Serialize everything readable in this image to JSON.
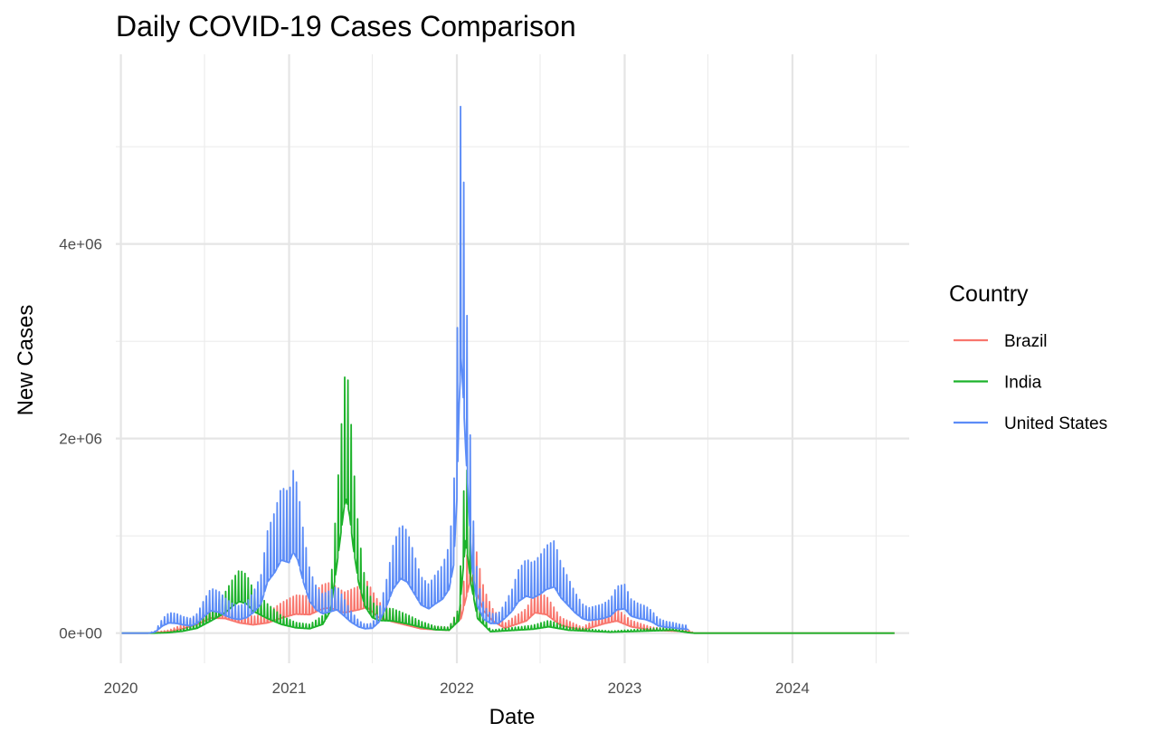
{
  "chart_data": {
    "type": "line",
    "title": "Daily COVID-19 Cases Comparison",
    "xlabel": "Date",
    "ylabel": "New Cases",
    "x_range": [
      "2019-12-21",
      "2024-09-11"
    ],
    "ylim": [
      -310000,
      5950000
    ],
    "x_ticks": [
      {
        "date": "2020-01-01",
        "label": "2020"
      },
      {
        "date": "2021-01-01",
        "label": "2021"
      },
      {
        "date": "2022-01-01",
        "label": "2022"
      },
      {
        "date": "2023-01-01",
        "label": "2023"
      },
      {
        "date": "2024-01-01",
        "label": "2024"
      }
    ],
    "x_minor_ticks": [
      "2020-07-01",
      "2021-07-01",
      "2022-07-01",
      "2023-07-01",
      "2024-07-01"
    ],
    "y_ticks": [
      {
        "value": 0,
        "label": "0e+00"
      },
      {
        "value": 2000000,
        "label": "2e+06"
      },
      {
        "value": 4000000,
        "label": "4e+06"
      }
    ],
    "y_minor_ticks": [
      1000000,
      3000000,
      5000000
    ],
    "grid": true,
    "legend": {
      "title": "Country",
      "position": "right"
    },
    "series": [
      {
        "name": "Brazil",
        "color": "#F8766D",
        "points": [
          [
            "2020-01-03",
            0
          ],
          [
            "2020-03-01",
            0
          ],
          [
            "2020-04-15",
            30000
          ],
          [
            "2020-05-15",
            90000
          ],
          [
            "2020-06-15",
            180000
          ],
          [
            "2020-07-15",
            310000
          ],
          [
            "2020-08-15",
            300000
          ],
          [
            "2020-09-15",
            210000
          ],
          [
            "2020-10-15",
            170000
          ],
          [
            "2020-11-15",
            210000
          ],
          [
            "2020-12-15",
            310000
          ],
          [
            "2021-01-15",
            390000
          ],
          [
            "2021-02-15",
            380000
          ],
          [
            "2021-03-15",
            500000
          ],
          [
            "2021-04-01",
            520000
          ],
          [
            "2021-05-01",
            420000
          ],
          [
            "2021-06-01",
            480000
          ],
          [
            "2021-06-20",
            530000
          ],
          [
            "2021-07-15",
            320000
          ],
          [
            "2021-08-15",
            230000
          ],
          [
            "2021-09-15",
            160000
          ],
          [
            "2021-10-15",
            90000
          ],
          [
            "2021-11-15",
            70000
          ],
          [
            "2021-12-15",
            60000
          ],
          [
            "2022-01-10",
            300000
          ],
          [
            "2022-02-01",
            1150000
          ],
          [
            "2022-02-15",
            780000
          ],
          [
            "2022-03-01",
            450000
          ],
          [
            "2022-03-20",
            250000
          ],
          [
            "2022-04-15",
            100000
          ],
          [
            "2022-06-01",
            250000
          ],
          [
            "2022-06-20",
            420000
          ],
          [
            "2022-07-15",
            380000
          ],
          [
            "2022-08-15",
            160000
          ],
          [
            "2022-10-01",
            60000
          ],
          [
            "2022-11-20",
            200000
          ],
          [
            "2022-12-15",
            250000
          ],
          [
            "2023-01-15",
            130000
          ],
          [
            "2023-03-01",
            60000
          ],
          [
            "2023-05-20",
            30000
          ],
          [
            "2023-06-01",
            0
          ],
          [
            "2024-08-10",
            0
          ]
        ]
      },
      {
        "name": "India",
        "color": "#1CB22A",
        "points": [
          [
            "2020-01-03",
            0
          ],
          [
            "2020-03-15",
            0
          ],
          [
            "2020-04-15",
            10000
          ],
          [
            "2020-05-15",
            40000
          ],
          [
            "2020-06-15",
            100000
          ],
          [
            "2020-07-15",
            250000
          ],
          [
            "2020-08-15",
            420000
          ],
          [
            "2020-09-01",
            560000
          ],
          [
            "2020-09-15",
            650000
          ],
          [
            "2020-10-01",
            600000
          ],
          [
            "2020-10-15",
            450000
          ],
          [
            "2020-11-15",
            300000
          ],
          [
            "2020-12-15",
            180000
          ],
          [
            "2021-01-15",
            110000
          ],
          [
            "2021-02-15",
            90000
          ],
          [
            "2021-03-15",
            180000
          ],
          [
            "2021-04-01",
            450000
          ],
          [
            "2021-04-15",
            1400000
          ],
          [
            "2021-04-25",
            2150000
          ],
          [
            "2021-05-01",
            2600000
          ],
          [
            "2021-05-06",
            2750000
          ],
          [
            "2021-05-13",
            2400000
          ],
          [
            "2021-05-20",
            1800000
          ],
          [
            "2021-06-01",
            1050000
          ],
          [
            "2021-06-15",
            550000
          ],
          [
            "2021-07-01",
            320000
          ],
          [
            "2021-07-15",
            260000
          ],
          [
            "2021-08-15",
            250000
          ],
          [
            "2021-09-15",
            190000
          ],
          [
            "2021-10-15",
            120000
          ],
          [
            "2021-11-15",
            70000
          ],
          [
            "2021-12-15",
            60000
          ],
          [
            "2022-01-05",
            250000
          ],
          [
            "2022-01-20",
            1900000
          ],
          [
            "2022-02-01",
            1000000
          ],
          [
            "2022-02-15",
            300000
          ],
          [
            "2022-03-15",
            30000
          ],
          [
            "2022-06-15",
            80000
          ],
          [
            "2022-07-20",
            130000
          ],
          [
            "2022-09-01",
            60000
          ],
          [
            "2022-12-01",
            20000
          ],
          [
            "2023-04-15",
            60000
          ],
          [
            "2023-05-20",
            10000
          ],
          [
            "2023-06-01",
            0
          ],
          [
            "2024-08-10",
            0
          ]
        ]
      },
      {
        "name": "United States",
        "color": "#5C8CF7",
        "points": [
          [
            "2020-01-03",
            0
          ],
          [
            "2020-03-01",
            0
          ],
          [
            "2020-03-15",
            20000
          ],
          [
            "2020-04-01",
            150000
          ],
          [
            "2020-04-15",
            210000
          ],
          [
            "2020-05-01",
            200000
          ],
          [
            "2020-05-15",
            170000
          ],
          [
            "2020-06-01",
            150000
          ],
          [
            "2020-06-15",
            200000
          ],
          [
            "2020-07-01",
            350000
          ],
          [
            "2020-07-15",
            460000
          ],
          [
            "2020-08-01",
            430000
          ],
          [
            "2020-08-15",
            360000
          ],
          [
            "2020-09-01",
            300000
          ],
          [
            "2020-09-15",
            280000
          ],
          [
            "2020-10-01",
            320000
          ],
          [
            "2020-10-15",
            420000
          ],
          [
            "2020-11-01",
            600000
          ],
          [
            "2020-11-15",
            1050000
          ],
          [
            "2020-12-01",
            1250000
          ],
          [
            "2020-12-15",
            1500000
          ],
          [
            "2021-01-01",
            1450000
          ],
          [
            "2021-01-10",
            1670000
          ],
          [
            "2021-01-20",
            1500000
          ],
          [
            "2021-02-01",
            1050000
          ],
          [
            "2021-02-15",
            650000
          ],
          [
            "2021-03-01",
            480000
          ],
          [
            "2021-03-15",
            400000
          ],
          [
            "2021-04-01",
            440000
          ],
          [
            "2021-04-15",
            480000
          ],
          [
            "2021-05-01",
            350000
          ],
          [
            "2021-05-15",
            230000
          ],
          [
            "2021-06-01",
            130000
          ],
          [
            "2021-06-15",
            90000
          ],
          [
            "2021-07-01",
            100000
          ],
          [
            "2021-07-15",
            220000
          ],
          [
            "2021-08-01",
            550000
          ],
          [
            "2021-08-15",
            900000
          ],
          [
            "2021-09-01",
            1120000
          ],
          [
            "2021-09-15",
            1050000
          ],
          [
            "2021-10-01",
            800000
          ],
          [
            "2021-10-15",
            580000
          ],
          [
            "2021-11-01",
            500000
          ],
          [
            "2021-11-15",
            600000
          ],
          [
            "2021-12-01",
            700000
          ],
          [
            "2021-12-15",
            900000
          ],
          [
            "2021-12-25",
            1400000
          ],
          [
            "2022-01-01",
            2750000
          ],
          [
            "2022-01-06",
            4700000
          ],
          [
            "2022-01-10",
            5650000
          ],
          [
            "2022-01-14",
            5050000
          ],
          [
            "2022-01-20",
            3800000
          ],
          [
            "2022-01-27",
            2550000
          ],
          [
            "2022-02-03",
            1350000
          ],
          [
            "2022-02-15",
            550000
          ],
          [
            "2022-03-01",
            280000
          ],
          [
            "2022-03-15",
            200000
          ],
          [
            "2022-04-01",
            200000
          ],
          [
            "2022-04-15",
            300000
          ],
          [
            "2022-05-01",
            450000
          ],
          [
            "2022-05-15",
            650000
          ],
          [
            "2022-06-01",
            760000
          ],
          [
            "2022-06-15",
            720000
          ],
          [
            "2022-07-01",
            800000
          ],
          [
            "2022-07-15",
            900000
          ],
          [
            "2022-08-01",
            950000
          ],
          [
            "2022-08-15",
            730000
          ],
          [
            "2022-09-01",
            560000
          ],
          [
            "2022-09-15",
            420000
          ],
          [
            "2022-10-01",
            300000
          ],
          [
            "2022-10-15",
            260000
          ],
          [
            "2022-11-01",
            280000
          ],
          [
            "2022-11-15",
            300000
          ],
          [
            "2022-12-01",
            350000
          ],
          [
            "2022-12-15",
            480000
          ],
          [
            "2023-01-01",
            500000
          ],
          [
            "2023-01-15",
            350000
          ],
          [
            "2023-02-01",
            300000
          ],
          [
            "2023-02-15",
            280000
          ],
          [
            "2023-03-01",
            230000
          ],
          [
            "2023-03-15",
            150000
          ],
          [
            "2023-04-01",
            120000
          ],
          [
            "2023-04-15",
            110000
          ],
          [
            "2023-05-01",
            90000
          ],
          [
            "2023-05-15",
            80000
          ],
          [
            "2023-05-20",
            70000
          ]
        ]
      }
    ]
  }
}
